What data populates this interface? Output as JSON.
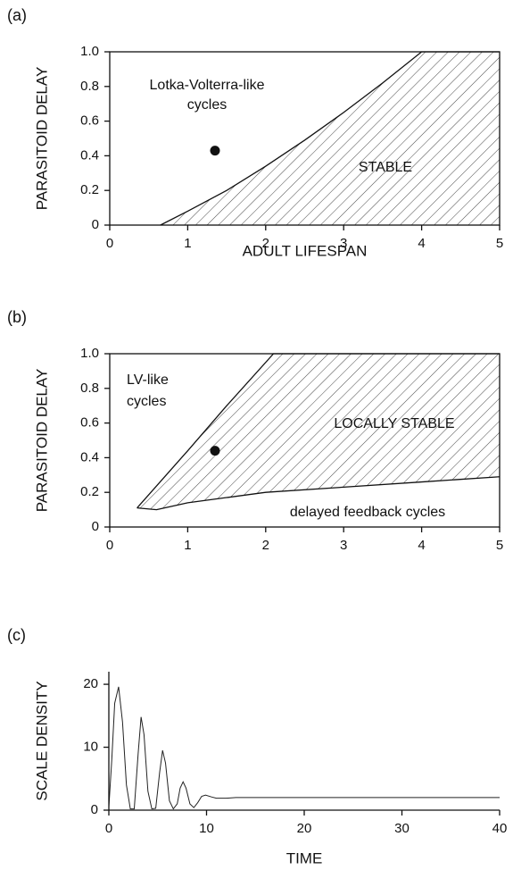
{
  "chart_data": [
    {
      "type": "region",
      "panel": "(a)",
      "xlabel": "ADULT LIFESPAN",
      "ylabel": "PARASITOID DELAY",
      "xlim": [
        0,
        5
      ],
      "ylim": [
        0,
        1
      ],
      "xticks": [
        0,
        1,
        2,
        3,
        4,
        5
      ],
      "yticks": [
        0,
        {
          "value": 0.2,
          "label": "0.2"
        },
        {
          "value": 0.4,
          "label": "0.4"
        },
        {
          "value": 0.6,
          "label": "0.6"
        },
        {
          "value": 0.8,
          "label": "0.8"
        },
        {
          "value": 1,
          "label": "1.0"
        }
      ],
      "boundary": {
        "x": [
          0.65,
          1,
          1.5,
          2,
          2.5,
          3,
          3.5,
          4,
          5
        ],
        "y": [
          0,
          0.08,
          0.2,
          0.34,
          0.49,
          0.65,
          0.82,
          1.0,
          1.0
        ]
      },
      "point": {
        "x": 1.35,
        "y": 0.43
      },
      "annotations": [
        "Lotka-Volterra-like",
        "cycles",
        "STABLE"
      ]
    },
    {
      "type": "region",
      "panel": "(b)",
      "ylabel": "PARASITOID DELAY",
      "xlim": [
        0,
        5
      ],
      "ylim": [
        0,
        1
      ],
      "xticks": [
        0,
        1,
        2,
        3,
        4,
        5
      ],
      "yticks": [
        0,
        {
          "value": 0.2,
          "label": "0.2"
        },
        {
          "value": 0.4,
          "label": "0.4"
        },
        {
          "value": 0.6,
          "label": "0.6"
        },
        {
          "value": 0.8,
          "label": "0.8"
        },
        {
          "value": 1,
          "label": "1.0"
        }
      ],
      "upper": {
        "x": [
          0.35,
          1,
          1.5,
          2.1,
          5
        ],
        "y": [
          0.11,
          0.44,
          0.7,
          1.0,
          1.0
        ]
      },
      "lower": {
        "x": [
          0.35,
          0.6,
          1,
          2,
          3,
          4,
          5
        ],
        "y": [
          0.11,
          0.1,
          0.14,
          0.2,
          0.23,
          0.26,
          0.29
        ]
      },
      "point": {
        "x": 1.35,
        "y": 0.44
      },
      "annotations": [
        "LV-like",
        "cycles",
        "LOCALLY STABLE",
        "delayed feedback cycles"
      ]
    },
    {
      "type": "line",
      "panel": "(c)",
      "xlabel": "TIME",
      "ylabel": "SCALE DENSITY",
      "xlim": [
        0,
        40
      ],
      "ylim": [
        0,
        22
      ],
      "xticks": [
        0,
        10,
        20,
        30,
        40
      ],
      "yticks": [
        0,
        10,
        20
      ],
      "x": [
        0,
        0.3,
        0.6,
        1.0,
        1.4,
        1.8,
        2.2,
        2.6,
        3.0,
        3.3,
        3.6,
        4.0,
        4.4,
        4.8,
        5.2,
        5.5,
        5.8,
        6.2,
        6.6,
        7.0,
        7.3,
        7.6,
        7.9,
        8.3,
        8.7,
        9.1,
        9.5,
        9.9,
        10.5,
        11,
        12,
        13,
        14,
        15,
        20,
        25,
        30,
        35,
        40
      ],
      "values": [
        0.5,
        8,
        17,
        19.6,
        14,
        4,
        0.2,
        0.2,
        9,
        14.8,
        12,
        3,
        0.2,
        0.3,
        6,
        9.5,
        7.5,
        1.5,
        0.2,
        1,
        3.5,
        4.5,
        3.5,
        1,
        0.4,
        1.2,
        2.2,
        2.4,
        2.1,
        1.9,
        1.9,
        2.0,
        2.0,
        2.0,
        2.0,
        2.0,
        2.0,
        2.0,
        2.0
      ]
    }
  ]
}
